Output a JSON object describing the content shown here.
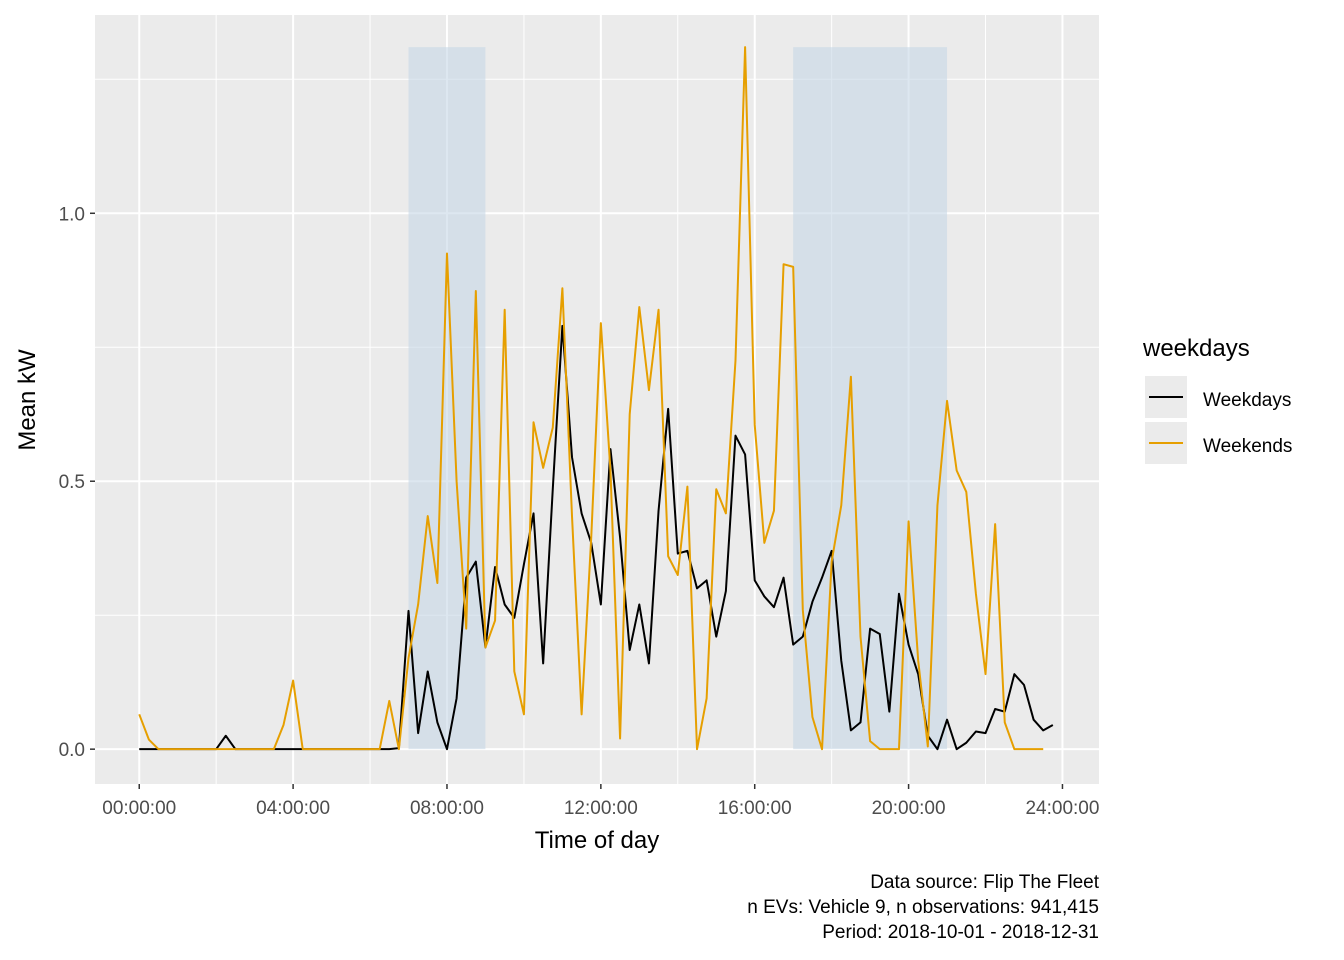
{
  "chart_data": {
    "type": "line",
    "xlabel": "Time of day",
    "ylabel": "Mean kW",
    "x_tick_labels": [
      "00:00:00",
      "04:00:00",
      "08:00:00",
      "12:00:00",
      "16:00:00",
      "20:00:00",
      "24:00:00"
    ],
    "y_tick_labels": [
      "0.0",
      "0.5",
      "1.0"
    ],
    "xlim_hours": [
      -1.15,
      24.95
    ],
    "ylim": [
      -0.065,
      1.37
    ],
    "grid": true,
    "legend": {
      "title": "weekdays",
      "position": "right"
    },
    "shaded_periods_hours": [
      [
        7,
        9
      ],
      [
        17,
        21
      ]
    ],
    "shade_top": 1.31,
    "colors": {
      "panel": "#ebebeb",
      "grid": "#ffffff",
      "shade": "#c6d7e6",
      "weekdays": "#000000",
      "weekends": "#e69f00"
    },
    "x_hours": [
      0,
      0.25,
      0.5,
      0.75,
      1,
      1.25,
      1.5,
      1.75,
      2,
      2.25,
      2.5,
      2.75,
      3,
      3.25,
      3.5,
      3.75,
      4,
      4.25,
      4.5,
      4.75,
      5,
      5.25,
      5.5,
      5.75,
      6,
      6.25,
      6.5,
      6.75,
      7,
      7.25,
      7.5,
      7.75,
      8,
      8.25,
      8.5,
      8.75,
      9,
      9.25,
      9.5,
      9.75,
      10,
      10.25,
      10.5,
      10.75,
      11,
      11.25,
      11.5,
      11.75,
      12,
      12.25,
      12.5,
      12.75,
      13,
      13.25,
      13.5,
      13.75,
      14,
      14.25,
      14.5,
      14.75,
      15,
      15.25,
      15.5,
      15.75,
      16,
      16.25,
      16.5,
      16.75,
      17,
      17.25,
      17.5,
      17.75,
      18,
      18.25,
      18.5,
      18.75,
      19,
      19.25,
      19.5,
      19.75,
      20,
      20.25,
      20.5,
      20.75,
      21,
      21.25,
      21.5,
      21.75,
      22,
      22.25,
      22.5,
      22.75,
      23,
      23.25,
      23.5,
      23.75
    ],
    "series": [
      {
        "name": "Weekdays",
        "values": [
          0,
          0,
          0,
          0,
          0,
          0,
          0,
          0,
          0,
          0.025,
          0,
          0,
          0,
          0,
          0,
          0,
          0,
          0,
          0,
          0,
          0,
          0,
          0,
          0,
          0,
          0,
          0,
          0.002,
          0.258,
          0.03,
          0.145,
          0.05,
          0,
          0.095,
          0.32,
          0.35,
          0.19,
          0.34,
          0.27,
          0.245,
          0.345,
          0.44,
          0.16,
          0.485,
          0.79,
          0.545,
          0.44,
          0.385,
          0.27,
          0.56,
          0.395,
          0.185,
          0.27,
          0.16,
          0.445,
          0.635,
          0.365,
          0.37,
          0.3,
          0.315,
          0.21,
          0.295,
          0.585,
          0.55,
          0.315,
          0.285,
          0.265,
          0.32,
          0.195,
          0.21,
          0.275,
          0.32,
          0.37,
          0.165,
          0.035,
          0.05,
          0.225,
          0.215,
          0.07,
          0.29,
          0.195,
          0.14,
          0.025,
          0,
          0.055,
          0,
          0.012,
          0.033,
          0.03,
          0.075,
          0.07,
          0.14,
          0.12,
          0.055,
          0.035,
          0.045
        ]
      },
      {
        "name": "Weekends",
        "values": [
          0.065,
          0.018,
          0,
          0,
          0,
          0,
          0,
          0,
          0,
          0,
          0,
          0,
          0,
          0,
          0,
          0.045,
          0.128,
          0,
          0,
          0,
          0,
          0,
          0,
          0,
          0,
          0,
          0.09,
          0,
          0.17,
          0.27,
          0.435,
          0.31,
          0.925,
          0.5,
          0.225,
          0.855,
          0.19,
          0.24,
          0.82,
          0.145,
          0.065,
          0.61,
          0.525,
          0.6,
          0.86,
          0.435,
          0.065,
          0.395,
          0.795,
          0.52,
          0.02,
          0.625,
          0.825,
          0.67,
          0.82,
          0.36,
          0.325,
          0.49,
          0,
          0.095,
          0.485,
          0.44,
          0.725,
          1.31,
          0.605,
          0.385,
          0.445,
          0.905,
          0.9,
          0.26,
          0.06,
          0,
          0.35,
          0.455,
          0.695,
          0.21,
          0.015,
          0,
          0,
          0,
          0.425,
          0.165,
          0.005,
          0.455,
          0.65,
          0.52,
          0.48,
          0.29,
          0.14,
          0.42,
          0.05,
          0,
          0,
          0,
          0
        ]
      }
    ]
  },
  "caption": {
    "line1": "Data source: Flip The Fleet",
    "line2": "n EVs: Vehicle 9, n observations: 941,415",
    "line3": "Period: 2018-10-01 - 2018-12-31"
  }
}
